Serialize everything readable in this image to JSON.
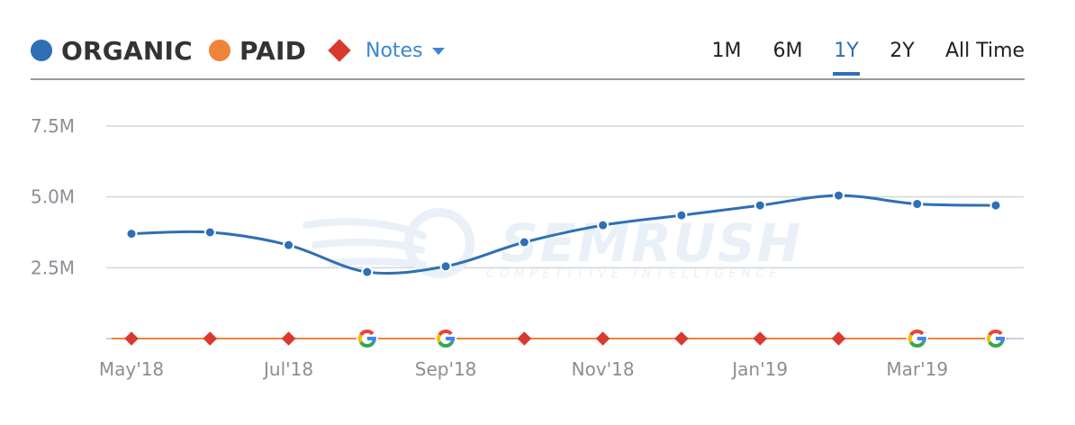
{
  "legend": {
    "organic": {
      "label": "ORGANIC",
      "color": "#2f6fb5"
    },
    "paid": {
      "label": "PAID",
      "color": "#f0833a"
    },
    "notes": {
      "label": "Notes",
      "color": "#d83a2e"
    }
  },
  "range_tabs": [
    {
      "label": "1M",
      "active": false
    },
    {
      "label": "6M",
      "active": false
    },
    {
      "label": "1Y",
      "active": true
    },
    {
      "label": "2Y",
      "active": false
    },
    {
      "label": "All Time",
      "active": false
    }
  ],
  "watermark": {
    "title": "SEMRUSH",
    "subtitle": "COMPETITIVE INTELLIGENCE"
  },
  "chart_data": {
    "type": "line",
    "x": [
      "May'18",
      "Jun'18",
      "Jul'18",
      "Aug'18",
      "Sep'18",
      "Oct'18",
      "Nov'18",
      "Dec'18",
      "Jan'19",
      "Feb'19",
      "Mar'19",
      "Apr'19"
    ],
    "x_tick_labels": [
      "May'18",
      "Jul'18",
      "Sep'18",
      "Nov'18",
      "Jan'19",
      "Mar'19"
    ],
    "y_tick_labels": [
      "7.5M",
      "5.0M",
      "2.5M"
    ],
    "y_ticks": [
      7500000,
      5000000,
      2500000
    ],
    "ylim": [
      0,
      7500000
    ],
    "grid": true,
    "series": [
      {
        "name": "ORGANIC",
        "color": "#2f6fb5",
        "values": [
          3700000,
          3750000,
          3300000,
          2350000,
          2550000,
          3400000,
          4000000,
          4350000,
          4700000,
          5050000,
          4750000,
          4700000
        ]
      },
      {
        "name": "PAID",
        "color": "#f0833a",
        "values": [
          0,
          0,
          0,
          0,
          0,
          0,
          0,
          0,
          0,
          0,
          0,
          0
        ]
      }
    ],
    "markers": [
      "note",
      "note",
      "note",
      "google",
      "google",
      "note",
      "note",
      "note",
      "note",
      "note",
      "google",
      "google"
    ]
  }
}
